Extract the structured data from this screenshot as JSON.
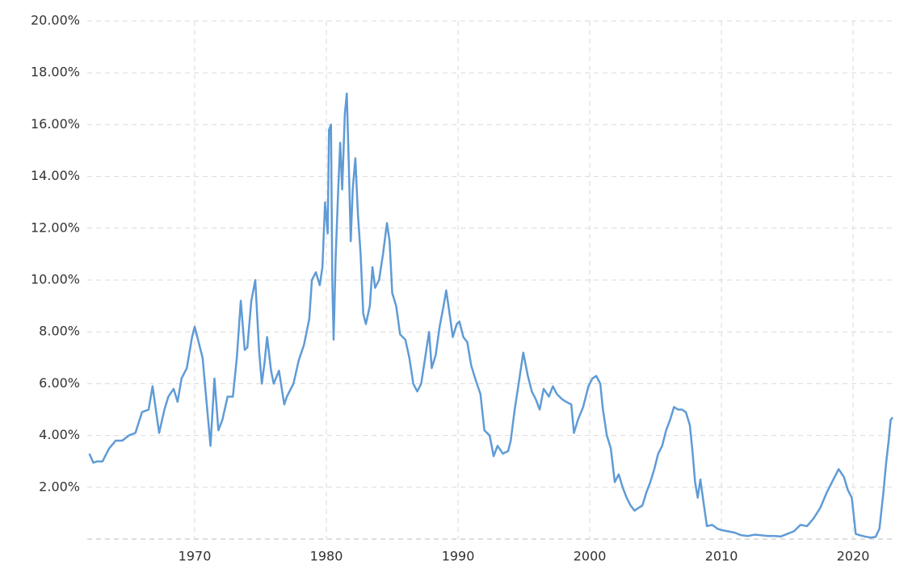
{
  "chart_data": {
    "type": "line",
    "color": "#5f9bd6",
    "grid": true,
    "xlim": [
      1961.84,
      2023.0
    ],
    "xticks": [
      1970,
      1980,
      1990,
      2000,
      2010,
      2020
    ],
    "ylim": [
      0,
      20
    ],
    "yticks": [
      {
        "value": 2,
        "label": "2.00%"
      },
      {
        "value": 4,
        "label": "4.00%"
      },
      {
        "value": 6,
        "label": "6.00%"
      },
      {
        "value": 8,
        "label": "8.00%"
      },
      {
        "value": 10,
        "label": "10.00%"
      },
      {
        "value": 12,
        "label": "12.00%"
      },
      {
        "value": 14,
        "label": "14.00%"
      },
      {
        "value": 16,
        "label": "16.00%"
      },
      {
        "value": 18,
        "label": "18.00%"
      },
      {
        "value": 20,
        "label": "20.00%"
      }
    ],
    "x": [
      1962.0,
      1962.3,
      1962.6,
      1963.0,
      1963.5,
      1964.0,
      1964.5,
      1965.0,
      1965.5,
      1966.0,
      1966.5,
      1966.8,
      1967.3,
      1967.7,
      1968.0,
      1968.4,
      1968.7,
      1969.0,
      1969.4,
      1969.8,
      1970.0,
      1970.3,
      1970.6,
      1970.9,
      1971.2,
      1971.5,
      1971.8,
      1972.1,
      1972.5,
      1972.9,
      1973.2,
      1973.5,
      1973.8,
      1974.0,
      1974.3,
      1974.6,
      1974.9,
      1975.1,
      1975.3,
      1975.5,
      1975.8,
      1976.0,
      1976.4,
      1976.8,
      1977.0,
      1977.5,
      1977.9,
      1978.3,
      1978.7,
      1978.9,
      1979.2,
      1979.5,
      1979.7,
      1979.9,
      1980.1,
      1980.2,
      1980.35,
      1980.45,
      1980.55,
      1980.7,
      1980.9,
      1981.05,
      1981.2,
      1981.4,
      1981.55,
      1981.7,
      1981.85,
      1982.0,
      1982.2,
      1982.4,
      1982.6,
      1982.8,
      1983.0,
      1983.3,
      1983.5,
      1983.7,
      1984.0,
      1984.3,
      1984.6,
      1984.8,
      1985.0,
      1985.3,
      1985.6,
      1986.0,
      1986.3,
      1986.6,
      1986.9,
      1987.2,
      1987.5,
      1987.8,
      1988.0,
      1988.3,
      1988.6,
      1988.9,
      1989.1,
      1989.3,
      1989.6,
      1989.9,
      1990.1,
      1990.4,
      1990.7,
      1991.0,
      1991.3,
      1991.7,
      1992.0,
      1992.4,
      1992.7,
      1993.0,
      1993.4,
      1993.8,
      1994.0,
      1994.3,
      1994.6,
      1994.95,
      1995.3,
      1995.6,
      1995.9,
      1996.2,
      1996.5,
      1996.9,
      1997.2,
      1997.5,
      1997.9,
      1998.2,
      1998.6,
      1998.8,
      1999.1,
      1999.5,
      1999.9,
      2000.2,
      2000.5,
      2000.8,
      2001.0,
      2001.3,
      2001.6,
      2001.9,
      2002.2,
      2002.5,
      2002.8,
      2003.1,
      2003.4,
      2003.7,
      2004.0,
      2004.3,
      2004.6,
      2004.9,
      2005.2,
      2005.5,
      2005.8,
      2006.1,
      2006.4,
      2006.7,
      2007.0,
      2007.3,
      2007.6,
      2007.8,
      2008.0,
      2008.2,
      2008.4,
      2008.7,
      2008.9,
      2009.3,
      2009.7,
      2010.0,
      2010.5,
      2011.0,
      2011.5,
      2012.0,
      2012.5,
      2013.0,
      2013.5,
      2014.0,
      2014.5,
      2015.0,
      2015.5,
      2016.0,
      2016.5,
      2017.0,
      2017.5,
      2018.0,
      2018.5,
      2018.9,
      2019.3,
      2019.6,
      2019.9,
      2020.2,
      2020.5,
      2020.9,
      2021.3,
      2021.7,
      2022.0,
      2022.3,
      2022.5,
      2022.7,
      2022.85,
      2023.0
    ],
    "values": [
      3.3,
      2.95,
      3.0,
      3.0,
      3.5,
      3.8,
      3.8,
      4.0,
      4.1,
      4.9,
      5.0,
      5.9,
      4.1,
      5.0,
      5.5,
      5.8,
      5.3,
      6.2,
      6.6,
      7.8,
      8.2,
      7.6,
      7.0,
      5.3,
      3.6,
      6.2,
      4.2,
      4.6,
      5.5,
      5.5,
      7.0,
      9.2,
      7.3,
      7.4,
      9.2,
      10.0,
      7.2,
      6.0,
      6.8,
      7.8,
      6.5,
      6.0,
      6.5,
      5.2,
      5.5,
      6.0,
      6.9,
      7.5,
      8.5,
      10.0,
      10.3,
      9.8,
      10.5,
      13.0,
      11.8,
      15.8,
      16.0,
      10.0,
      7.7,
      10.8,
      13.5,
      15.3,
      13.5,
      16.4,
      17.2,
      14.5,
      11.5,
      13.5,
      14.7,
      12.5,
      11.0,
      8.7,
      8.3,
      9.0,
      10.5,
      9.7,
      10.0,
      11.0,
      12.2,
      11.5,
      9.5,
      9.0,
      7.9,
      7.7,
      7.0,
      6.0,
      5.7,
      6.0,
      7.0,
      8.0,
      6.6,
      7.1,
      8.2,
      9.0,
      9.6,
      8.9,
      7.8,
      8.3,
      8.4,
      7.8,
      7.6,
      6.7,
      6.2,
      5.6,
      4.2,
      4.0,
      3.2,
      3.6,
      3.3,
      3.4,
      3.8,
      5.0,
      6.0,
      7.2,
      6.3,
      5.7,
      5.4,
      5.0,
      5.8,
      5.5,
      5.9,
      5.6,
      5.4,
      5.3,
      5.2,
      4.1,
      4.6,
      5.1,
      5.9,
      6.2,
      6.3,
      6.0,
      5.0,
      4.0,
      3.5,
      2.2,
      2.5,
      2.0,
      1.6,
      1.3,
      1.1,
      1.2,
      1.3,
      1.8,
      2.2,
      2.7,
      3.3,
      3.6,
      4.2,
      4.6,
      5.1,
      5.0,
      5.0,
      4.9,
      4.4,
      3.4,
      2.2,
      1.6,
      2.3,
      1.2,
      0.5,
      0.55,
      0.4,
      0.35,
      0.3,
      0.25,
      0.15,
      0.12,
      0.17,
      0.15,
      0.12,
      0.12,
      0.1,
      0.2,
      0.3,
      0.55,
      0.5,
      0.8,
      1.2,
      1.8,
      2.3,
      2.7,
      2.4,
      1.9,
      1.6,
      0.2,
      0.15,
      0.1,
      0.06,
      0.08,
      0.4,
      1.8,
      2.9,
      3.8,
      4.6,
      4.7
    ]
  }
}
